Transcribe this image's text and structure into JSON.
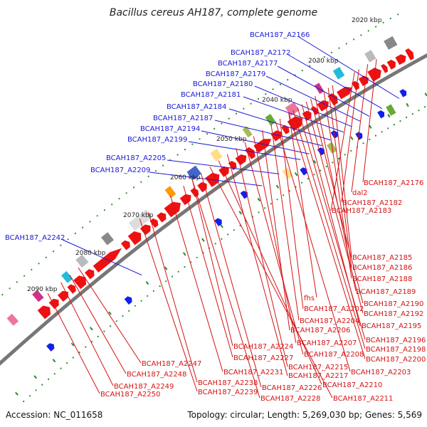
{
  "title": "Bacillus cereus AH187, complete genome",
  "footer": {
    "accession": "Accession: NC_011658",
    "summary": "Topology: circular; Length: 5,269,030 bp; Genes: 5,569"
  },
  "colors": {
    "backbone": "#777777",
    "forward_gene": "#ee1111",
    "reverse_gene": "#1020ee",
    "tick": "#2a8a2a",
    "label_forward": "#d41414",
    "label_reverse": "#1a1ad6"
  },
  "kbp_ticks": [
    "2020 kbp",
    "2030 kbp",
    "2040 kbp",
    "2050 kbp",
    "2060 kbp",
    "2070 kbp",
    "2080 kbp",
    "2090 kbp"
  ],
  "labels_reverse": [
    "BCAH187_A2166",
    "BCAH187_A2172",
    "BCAH187_A2177",
    "BCAH187_A2179",
    "BCAH187_A2180",
    "BCAH187_A2181",
    "BCAH187_A2184",
    "BCAH187_A2187",
    "BCAH187_A2194",
    "BCAH187_A2199",
    "BCAH187_A2205",
    "BCAH187_A2209",
    "BCAH187_A2242"
  ],
  "labels_forward": [
    "BCAH187_A2176",
    "dal2",
    "BCAH187_A2182",
    "BCAH187_A2183",
    "BCAH187_A2185",
    "BCAH187_A2186",
    "BCAH187_A2188",
    "BCAH187_A2189",
    "BCAH187_A2190",
    "BCAH187_A2192",
    "fhs",
    "BCAH187_A2202",
    "BCAH187_A2204",
    "BCAH187_A2206",
    "BCAH187_A2195",
    "BCAH187_A2196",
    "BCAH187_A2198",
    "BCAH187_A2200",
    "BCAH187_A2224",
    "BCAH187_A2207",
    "BCAH187_A2208",
    "BCAH187_A2227",
    "BCAH187_A2215",
    "BCAH187_A2203",
    "BCAH187_A2247",
    "BCAH187_A2231",
    "BCAH187_A2217",
    "BCAH187_A2248",
    "BCAH187_A2238",
    "BCAH187_A2226",
    "BCAH187_A2210",
    "BCAH187_A2249",
    "BCAH187_A2239",
    "BCAH187_A2228",
    "BCAH187_A2211",
    "BCAH187_A2250"
  ]
}
